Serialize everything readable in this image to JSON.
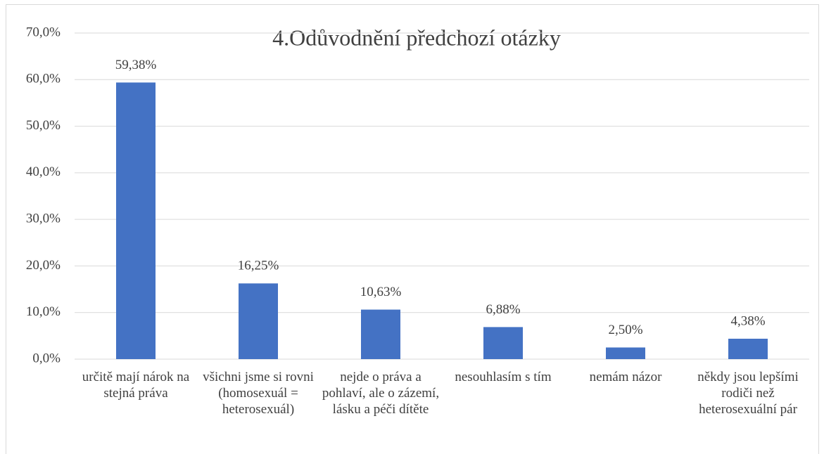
{
  "chart_data": {
    "type": "bar",
    "title": "4.Odůvodnění předchozí otázky",
    "categories": [
      "určitě mají nárok na stejná práva",
      "všichni jsme si rovni (homosexuál = heterosexuál)",
      "nejde o práva a pohlaví, ale o zázemí, lásku a péči dítěte",
      "nesouhlasím s tím",
      "nemám názor",
      "někdy jsou lepšími rodiči než heterosexuální pár"
    ],
    "values": [
      59.38,
      16.25,
      10.63,
      6.88,
      2.5,
      4.38
    ],
    "value_labels": [
      "59,38%",
      "16,25%",
      "10,63%",
      "6,88%",
      "2,50%",
      "4,38%"
    ],
    "color": "#4472c4",
    "ylim": [
      0,
      70
    ],
    "yticks": [
      {
        "value": 0,
        "label": "0,0%"
      },
      {
        "value": 10,
        "label": "10,0%"
      },
      {
        "value": 20,
        "label": "20,0%"
      },
      {
        "value": 30,
        "label": "30,0%"
      },
      {
        "value": 40,
        "label": "40,0%"
      },
      {
        "value": 50,
        "label": "50,0%"
      },
      {
        "value": 60,
        "label": "60,0%"
      },
      {
        "value": 70,
        "label": "70,0%"
      }
    ],
    "grid": true
  }
}
